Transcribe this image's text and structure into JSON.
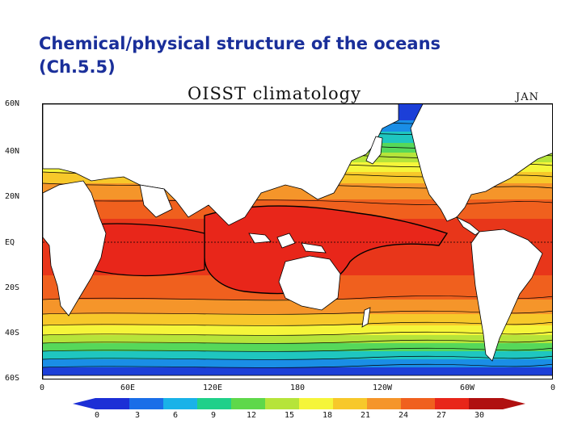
{
  "slide": {
    "title_line1": "Chemical/physical structure of the oceans",
    "title_line2": "(Ch.5.5)"
  },
  "map": {
    "title": "OISST climatology",
    "month": "JAN",
    "lat_labels": [
      "60N",
      "40N",
      "20N",
      "EQ",
      "20S",
      "40S",
      "60S"
    ],
    "lon_labels": [
      "0",
      "60E",
      "120E",
      "180",
      "120W",
      "60W",
      "0"
    ],
    "variable": "sea surface temperature",
    "colors": {
      "land": "#ffffff",
      "contour": "#000000"
    }
  },
  "colorbar": {
    "ticks": [
      "0",
      "3",
      "6",
      "9",
      "12",
      "15",
      "18",
      "21",
      "24",
      "27",
      "30"
    ],
    "colors": [
      "#1c2fd6",
      "#1a6ee8",
      "#19b2e8",
      "#20d08a",
      "#5ed84a",
      "#b6e43a",
      "#f5f53a",
      "#f7c82a",
      "#f5952a",
      "#f0601e",
      "#e8261a",
      "#b01010"
    ]
  }
}
